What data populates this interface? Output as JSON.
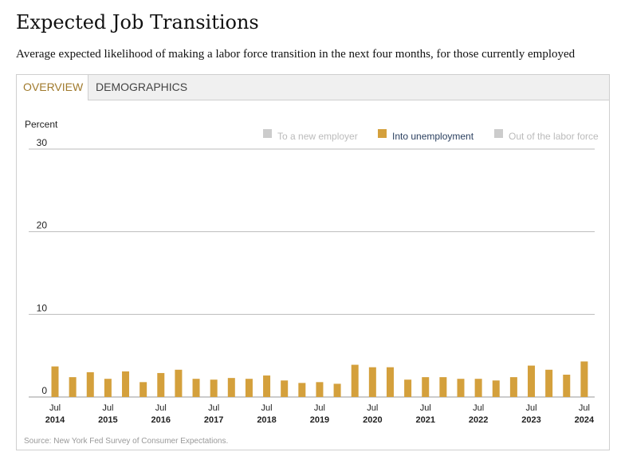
{
  "title": "Expected Job Transitions",
  "subtitle": "Average expected likelihood of making a labor force transition in the next four months, for those currently employed",
  "tabs": [
    {
      "label": "OVERVIEW",
      "active": true
    },
    {
      "label": "DEMOGRAPHICS",
      "active": false
    }
  ],
  "source": "Source: New York Fed Survey of Consumer Expectations.",
  "colors": {
    "active_series": "#d4a03c",
    "inactive_legend": "#cccccc",
    "grid": "#bbbbbb"
  },
  "chart_data": {
    "type": "bar",
    "ylabel": "Percent",
    "ylim": [
      0,
      30
    ],
    "yticks": [
      0,
      10,
      20,
      30
    ],
    "legend": [
      {
        "name": "To a new employer",
        "active": false
      },
      {
        "name": "Into unemployment",
        "active": true
      },
      {
        "name": "Out of the labor force",
        "active": false
      }
    ],
    "legend_position": "top-right",
    "x_tick_labels": [
      {
        "month": "Jul",
        "year": "2014"
      },
      {
        "month": "Jul",
        "year": "2015"
      },
      {
        "month": "Jul",
        "year": "2016"
      },
      {
        "month": "Jul",
        "year": "2017"
      },
      {
        "month": "Jul",
        "year": "2018"
      },
      {
        "month": "Jul",
        "year": "2019"
      },
      {
        "month": "Jul",
        "year": "2020"
      },
      {
        "month": "Jul",
        "year": "2021"
      },
      {
        "month": "Jul",
        "year": "2022"
      },
      {
        "month": "Jul",
        "year": "2023"
      },
      {
        "month": "Jul",
        "year": "2024"
      }
    ],
    "series": [
      {
        "name": "Into unemployment",
        "values": [
          3.7,
          2.4,
          3.0,
          2.2,
          3.1,
          1.8,
          2.9,
          3.3,
          2.2,
          2.1,
          2.3,
          2.2,
          2.6,
          2.0,
          1.7,
          1.8,
          1.6,
          3.9,
          3.6,
          3.6,
          2.1,
          2.4,
          2.4,
          2.2,
          2.2,
          2.0,
          2.4,
          3.8,
          3.3,
          2.7,
          4.3
        ]
      }
    ]
  }
}
